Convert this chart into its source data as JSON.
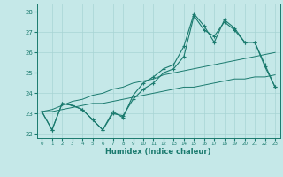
{
  "xlabel": "Humidex (Indice chaleur)",
  "xlim": [
    -0.5,
    23.5
  ],
  "ylim": [
    21.8,
    28.4
  ],
  "yticks": [
    22,
    23,
    24,
    25,
    26,
    27,
    28
  ],
  "xticks": [
    0,
    1,
    2,
    3,
    4,
    5,
    6,
    7,
    8,
    9,
    10,
    11,
    12,
    13,
    14,
    15,
    16,
    17,
    18,
    19,
    20,
    21,
    22,
    23
  ],
  "bg_color": "#c5e8e8",
  "grid_color": "#a8d4d4",
  "line_color": "#1a7a6e",
  "series1_y": [
    23.1,
    22.2,
    23.5,
    23.4,
    23.2,
    22.7,
    22.2,
    23.1,
    22.8,
    23.9,
    24.5,
    24.8,
    25.2,
    25.4,
    26.3,
    27.9,
    27.3,
    26.5,
    27.6,
    27.2,
    26.5,
    26.5,
    25.4,
    24.3
  ],
  "series2_y": [
    23.1,
    22.2,
    23.5,
    23.4,
    23.2,
    22.7,
    22.2,
    23.0,
    22.9,
    23.7,
    24.2,
    24.5,
    25.0,
    25.2,
    25.8,
    27.8,
    27.1,
    26.8,
    27.5,
    27.1,
    26.5,
    26.5,
    25.3,
    24.3
  ],
  "series3_y": [
    23.1,
    23.1,
    23.2,
    23.3,
    23.4,
    23.5,
    23.5,
    23.6,
    23.7,
    23.8,
    23.9,
    24.0,
    24.1,
    24.2,
    24.3,
    24.3,
    24.4,
    24.5,
    24.6,
    24.7,
    24.7,
    24.8,
    24.8,
    24.9
  ],
  "series4_y": [
    23.1,
    23.2,
    23.4,
    23.6,
    23.7,
    23.9,
    24.0,
    24.2,
    24.3,
    24.5,
    24.6,
    24.7,
    24.9,
    25.0,
    25.1,
    25.2,
    25.3,
    25.4,
    25.5,
    25.6,
    25.7,
    25.8,
    25.9,
    26.0
  ]
}
